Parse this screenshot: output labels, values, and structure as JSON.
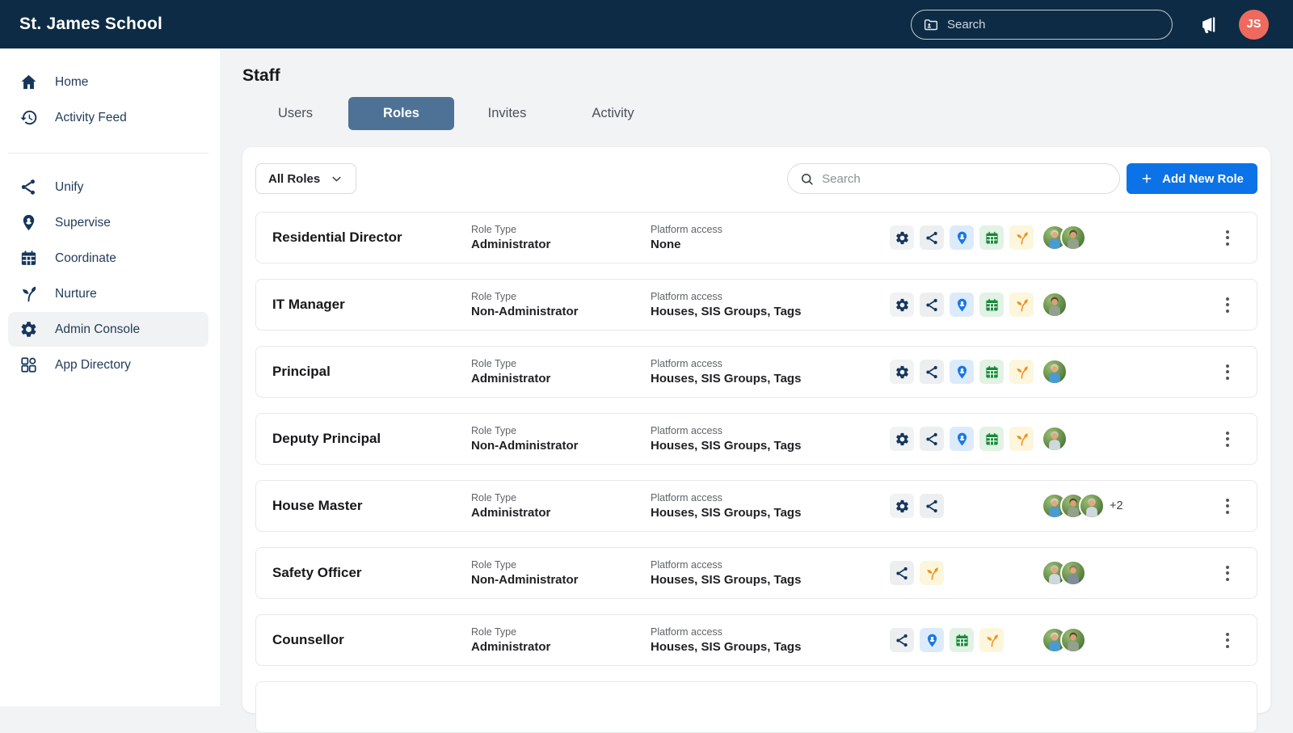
{
  "topbar": {
    "title": "St. James School",
    "search_placeholder": "Search",
    "avatar_initials": "JS",
    "avatar_color": "#ee6a5f"
  },
  "sidebar": {
    "groups": [
      {
        "items": [
          {
            "label": "Home",
            "icon": "home",
            "active": false
          },
          {
            "label": "Activity Feed",
            "icon": "history",
            "active": false
          }
        ]
      },
      {
        "items": [
          {
            "label": "Unify",
            "icon": "share",
            "active": false
          },
          {
            "label": "Supervise",
            "icon": "pin",
            "active": false
          },
          {
            "label": "Coordinate",
            "icon": "calendar",
            "active": false
          },
          {
            "label": "Nurture",
            "icon": "seedling",
            "active": false
          },
          {
            "label": "Admin Console",
            "icon": "gear",
            "active": true
          },
          {
            "label": "App Directory",
            "icon": "grid",
            "active": false
          }
        ]
      }
    ]
  },
  "page": {
    "title": "Staff"
  },
  "tabs": [
    {
      "label": "Users",
      "active": false
    },
    {
      "label": "Roles",
      "active": true
    },
    {
      "label": "Invites",
      "active": false
    },
    {
      "label": "Activity",
      "active": false
    }
  ],
  "toolbar": {
    "filter_value": "All Roles",
    "search_placeholder": "Search",
    "add_role_label": "Add New Role"
  },
  "roles_table": {
    "labels": {
      "role_type": "Role Type",
      "platform_access": "Platform access"
    },
    "rows": [
      {
        "name": "Residential Director",
        "role_type": "Administrator",
        "platform_access": "None",
        "apps": [
          "admin-console",
          "unify",
          "supervise",
          "coordinate",
          "nurture"
        ],
        "avatar_count": 2,
        "overflow_label": ""
      },
      {
        "name": "IT Manager",
        "role_type": "Non-Administrator",
        "platform_access": "Houses, SIS Groups, Tags",
        "apps": [
          "admin-console",
          "unify",
          "supervise",
          "coordinate",
          "nurture"
        ],
        "avatar_count": 1,
        "overflow_label": ""
      },
      {
        "name": "Principal",
        "role_type": "Administrator",
        "platform_access": "Houses, SIS Groups, Tags",
        "apps": [
          "admin-console",
          "unify",
          "supervise",
          "coordinate",
          "nurture"
        ],
        "avatar_count": 1,
        "overflow_label": ""
      },
      {
        "name": "Deputy Principal",
        "role_type": "Non-Administrator",
        "platform_access": "Houses, SIS Groups, Tags",
        "apps": [
          "admin-console",
          "unify",
          "supervise",
          "coordinate",
          "nurture"
        ],
        "avatar_count": 1,
        "overflow_label": ""
      },
      {
        "name": "House Master",
        "role_type": "Administrator",
        "platform_access": "Houses, SIS Groups, Tags",
        "apps": [
          "admin-console",
          "unify"
        ],
        "avatar_count": 3,
        "overflow_label": "+2"
      },
      {
        "name": "Safety Officer",
        "role_type": "Non-Administrator",
        "platform_access": "Houses, SIS Groups, Tags",
        "apps": [
          "unify",
          "nurture"
        ],
        "avatar_count": 2,
        "overflow_label": ""
      },
      {
        "name": "Counsellor",
        "role_type": "Administrator",
        "platform_access": "Houses, SIS Groups, Tags",
        "apps": [
          "unify",
          "supervise",
          "coordinate",
          "nurture"
        ],
        "avatar_count": 2,
        "overflow_label": ""
      }
    ]
  },
  "colors": {
    "topbar_bg": "#0d2b44",
    "active_tab": "#4e7296",
    "accent_blue": "#0b72e8",
    "chip_navy": "#14365c",
    "chip_blue": "#1877e6",
    "chip_green": "#178a38",
    "chip_orange": "#f0901e"
  }
}
